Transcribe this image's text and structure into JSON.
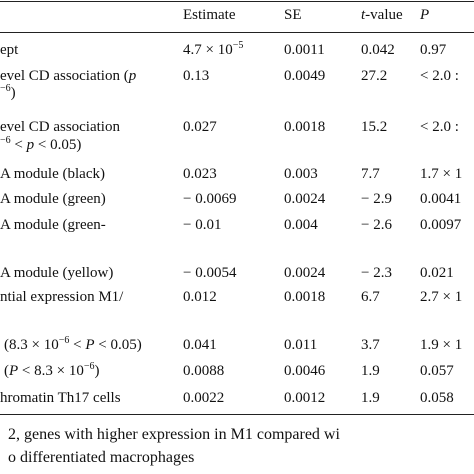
{
  "table": {
    "headers": {
      "estimate": "Estimate",
      "se": "SE",
      "tvalue_italic": "t",
      "tvalue_rest": "-value",
      "p": "P"
    },
    "rows": [
      {
        "label_parts": [
          "ept"
        ],
        "estimate_parts": [
          "4.7 × 10",
          "−5"
        ],
        "se": "0.0011",
        "t": "0.042",
        "p_parts": [
          "0.97"
        ]
      },
      {
        "label_parts": [
          "evel CD association (",
          "p"
        ],
        "label2_parts": [
          "−6",
          ")"
        ],
        "estimate_parts": [
          "0.13"
        ],
        "se": "0.0049",
        "t": "27.2",
        "p_parts": [
          "< 2.0 :"
        ]
      },
      {
        "label_parts": [
          "evel CD association"
        ],
        "label2_parts": [
          "−6",
          " < ",
          "p",
          " < 0.05)"
        ],
        "estimate_parts": [
          "0.027"
        ],
        "se": "0.0018",
        "t": "15.2",
        "p_parts": [
          "< 2.0 :"
        ]
      },
      {
        "label_parts": [
          "A module (black)"
        ],
        "estimate_parts": [
          "0.023"
        ],
        "se": "0.003",
        "t": "7.7",
        "p_parts": [
          "1.7 × 1"
        ]
      },
      {
        "label_parts": [
          "A module (green)"
        ],
        "estimate_parts": [
          "− 0.0069"
        ],
        "se": "0.0024",
        "t": "− 2.9",
        "p_parts": [
          "0.0041"
        ]
      },
      {
        "label_parts": [
          "A module (green-"
        ],
        "estimate_parts": [
          "− 0.01"
        ],
        "se": "0.004",
        "t": "− 2.6",
        "p_parts": [
          "0.0097"
        ]
      },
      {
        "label_parts": [
          "A module (yellow)"
        ],
        "estimate_parts": [
          "− 0.0054"
        ],
        "se": "0.0024",
        "t": "− 2.3",
        "p_parts": [
          "0.021"
        ]
      },
      {
        "label_parts": [
          "ntial expression M1/"
        ],
        "estimate_parts": [
          "0.012"
        ],
        "se": "0.0018",
        "t": "6.7",
        "p_parts": [
          "2.7 × 1"
        ]
      },
      {
        "label_parts": [
          "(8.3 × 10",
          "−6",
          " < ",
          "P",
          " < 0.05)"
        ],
        "estimate_parts": [
          "0.041"
        ],
        "se": "0.011",
        "t": "3.7",
        "p_parts": [
          "1.9 × 1"
        ]
      },
      {
        "label_parts": [
          "P",
          " < 8.3 × 10",
          "−6",
          ")"
        ],
        "estimate_parts": [
          "0.0088"
        ],
        "se": "0.0046",
        "t": "1.9",
        "p_parts": [
          "0.057"
        ]
      },
      {
        "label_parts": [
          "hromatin Th17 cells"
        ],
        "estimate_parts": [
          "0.0022"
        ],
        "se": "0.0012",
        "t": "1.9",
        "p_parts": [
          "0.058"
        ]
      }
    ]
  },
  "footnote": {
    "line1": "2, genes with higher expression in M1 compared wi",
    "line2": "o differentiated macrophages"
  }
}
